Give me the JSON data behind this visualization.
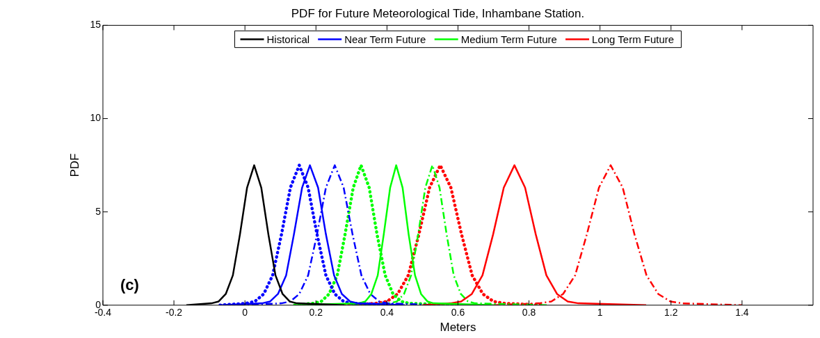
{
  "chart_data": {
    "type": "line",
    "title": "PDF for Future Meteorological Tide, Inhambane Station.",
    "xlabel": "Meters",
    "ylabel": "PDF",
    "xlim": [
      -0.4,
      1.6
    ],
    "xticks": [
      -0.4,
      -0.2,
      0,
      0.2,
      0.4,
      0.6,
      0.8,
      1,
      1.2,
      1.4
    ],
    "ylim": [
      0,
      15
    ],
    "yticks": [
      0,
      5,
      10,
      15
    ],
    "grid": false,
    "legend": "top",
    "annotations": [
      "(c)"
    ],
    "series": [
      {
        "name": "Historical",
        "color": "#000000",
        "line_style": "solid",
        "x": [
          -0.165,
          -0.094,
          -0.074,
          -0.054,
          -0.034,
          -0.014,
          0.006,
          0.026,
          0.046,
          0.066,
          0.086,
          0.106,
          0.126,
          0.146,
          0.28
        ],
        "values": [
          0,
          0.1,
          0.2,
          0.6,
          1.6,
          3.8,
          6.3,
          7.5,
          6.3,
          3.8,
          1.6,
          0.6,
          0.2,
          0.1,
          0
        ]
      },
      {
        "name": "Near Term Future",
        "color": "#0000ff",
        "line_style": "solid",
        "x": [
          -0.07,
          0.048,
          0.071,
          0.093,
          0.116,
          0.138,
          0.161,
          0.183,
          0.206,
          0.228,
          0.251,
          0.273,
          0.296,
          0.318,
          0.45
        ],
        "values": [
          0,
          0.1,
          0.2,
          0.6,
          1.6,
          3.8,
          6.3,
          7.5,
          6.3,
          3.8,
          1.6,
          0.6,
          0.2,
          0.1,
          0
        ]
      },
      {
        "name": "Medium Term Future",
        "color": "#00ff00",
        "line_style": "solid",
        "x": [
          0.14,
          0.321,
          0.339,
          0.356,
          0.374,
          0.391,
          0.409,
          0.426,
          0.444,
          0.461,
          0.479,
          0.496,
          0.514,
          0.531,
          0.7
        ],
        "values": [
          0,
          0.1,
          0.2,
          0.6,
          1.6,
          3.8,
          6.3,
          7.5,
          6.3,
          3.8,
          1.6,
          0.6,
          0.2,
          0.1,
          0
        ]
      },
      {
        "name": "Long Term Future",
        "color": "#ff0000",
        "line_style": "solid",
        "x": [
          0.5,
          0.579,
          0.609,
          0.639,
          0.669,
          0.699,
          0.729,
          0.759,
          0.789,
          0.819,
          0.849,
          0.879,
          0.909,
          0.939,
          1.13
        ],
        "values": [
          0,
          0.1,
          0.2,
          0.6,
          1.6,
          3.8,
          6.3,
          7.5,
          6.3,
          3.8,
          1.6,
          0.6,
          0.2,
          0.1,
          0
        ]
      },
      {
        "color": "#0000ff",
        "line_style": "dotted",
        "x": [
          -0.07,
          0.003,
          0.028,
          0.053,
          0.078,
          0.103,
          0.128,
          0.153,
          0.178,
          0.203,
          0.228,
          0.253,
          0.278,
          0.303,
          0.45
        ],
        "values": [
          0,
          0.1,
          0.2,
          0.6,
          1.6,
          3.8,
          6.3,
          7.5,
          6.3,
          3.8,
          1.6,
          0.6,
          0.2,
          0.1,
          0
        ]
      },
      {
        "color": "#0000ff",
        "line_style": "dashed",
        "x": [
          -0.02,
          0.103,
          0.128,
          0.153,
          0.178,
          0.203,
          0.228,
          0.253,
          0.278,
          0.303,
          0.328,
          0.353,
          0.378,
          0.403,
          0.55
        ],
        "values": [
          0,
          0.1,
          0.2,
          0.6,
          1.6,
          3.8,
          6.3,
          7.5,
          6.3,
          3.8,
          1.6,
          0.6,
          0.2,
          0.1,
          0
        ]
      },
      {
        "color": "#00ff00",
        "line_style": "dotted",
        "x": [
          0.14,
          0.192,
          0.215,
          0.237,
          0.26,
          0.282,
          0.305,
          0.327,
          0.35,
          0.372,
          0.395,
          0.417,
          0.44,
          0.462,
          0.6
        ],
        "values": [
          0,
          0.1,
          0.2,
          0.6,
          1.6,
          3.8,
          6.3,
          7.5,
          6.3,
          3.8,
          1.6,
          0.6,
          0.2,
          0.1,
          0
        ]
      },
      {
        "color": "#00ff00",
        "line_style": "dashed",
        "x": [
          0.3,
          0.408,
          0.428,
          0.448,
          0.468,
          0.488,
          0.508,
          0.528,
          0.548,
          0.568,
          0.588,
          0.608,
          0.628,
          0.648,
          0.85
        ],
        "values": [
          0,
          0.1,
          0.2,
          0.6,
          1.6,
          3.8,
          6.3,
          7.5,
          6.3,
          3.8,
          1.6,
          0.6,
          0.2,
          0.1,
          0
        ]
      },
      {
        "color": "#ff0000",
        "line_style": "dotted",
        "x": [
          0.28,
          0.37,
          0.4,
          0.43,
          0.46,
          0.49,
          0.52,
          0.55,
          0.58,
          0.61,
          0.64,
          0.67,
          0.7,
          0.73,
          0.84
        ],
        "values": [
          0,
          0.1,
          0.2,
          0.6,
          1.6,
          3.8,
          6.3,
          7.5,
          6.3,
          3.8,
          1.6,
          0.6,
          0.2,
          0.1,
          0
        ]
      },
      {
        "color": "#ff0000",
        "line_style": "dashed",
        "x": [
          0.7,
          0.829,
          0.863,
          0.896,
          0.93,
          0.963,
          0.997,
          1.03,
          1.064,
          1.097,
          1.131,
          1.164,
          1.198,
          1.231,
          1.4
        ],
        "values": [
          0,
          0.1,
          0.2,
          0.6,
          1.6,
          3.8,
          6.3,
          7.5,
          6.3,
          3.8,
          1.6,
          0.6,
          0.2,
          0.1,
          0
        ]
      }
    ]
  }
}
